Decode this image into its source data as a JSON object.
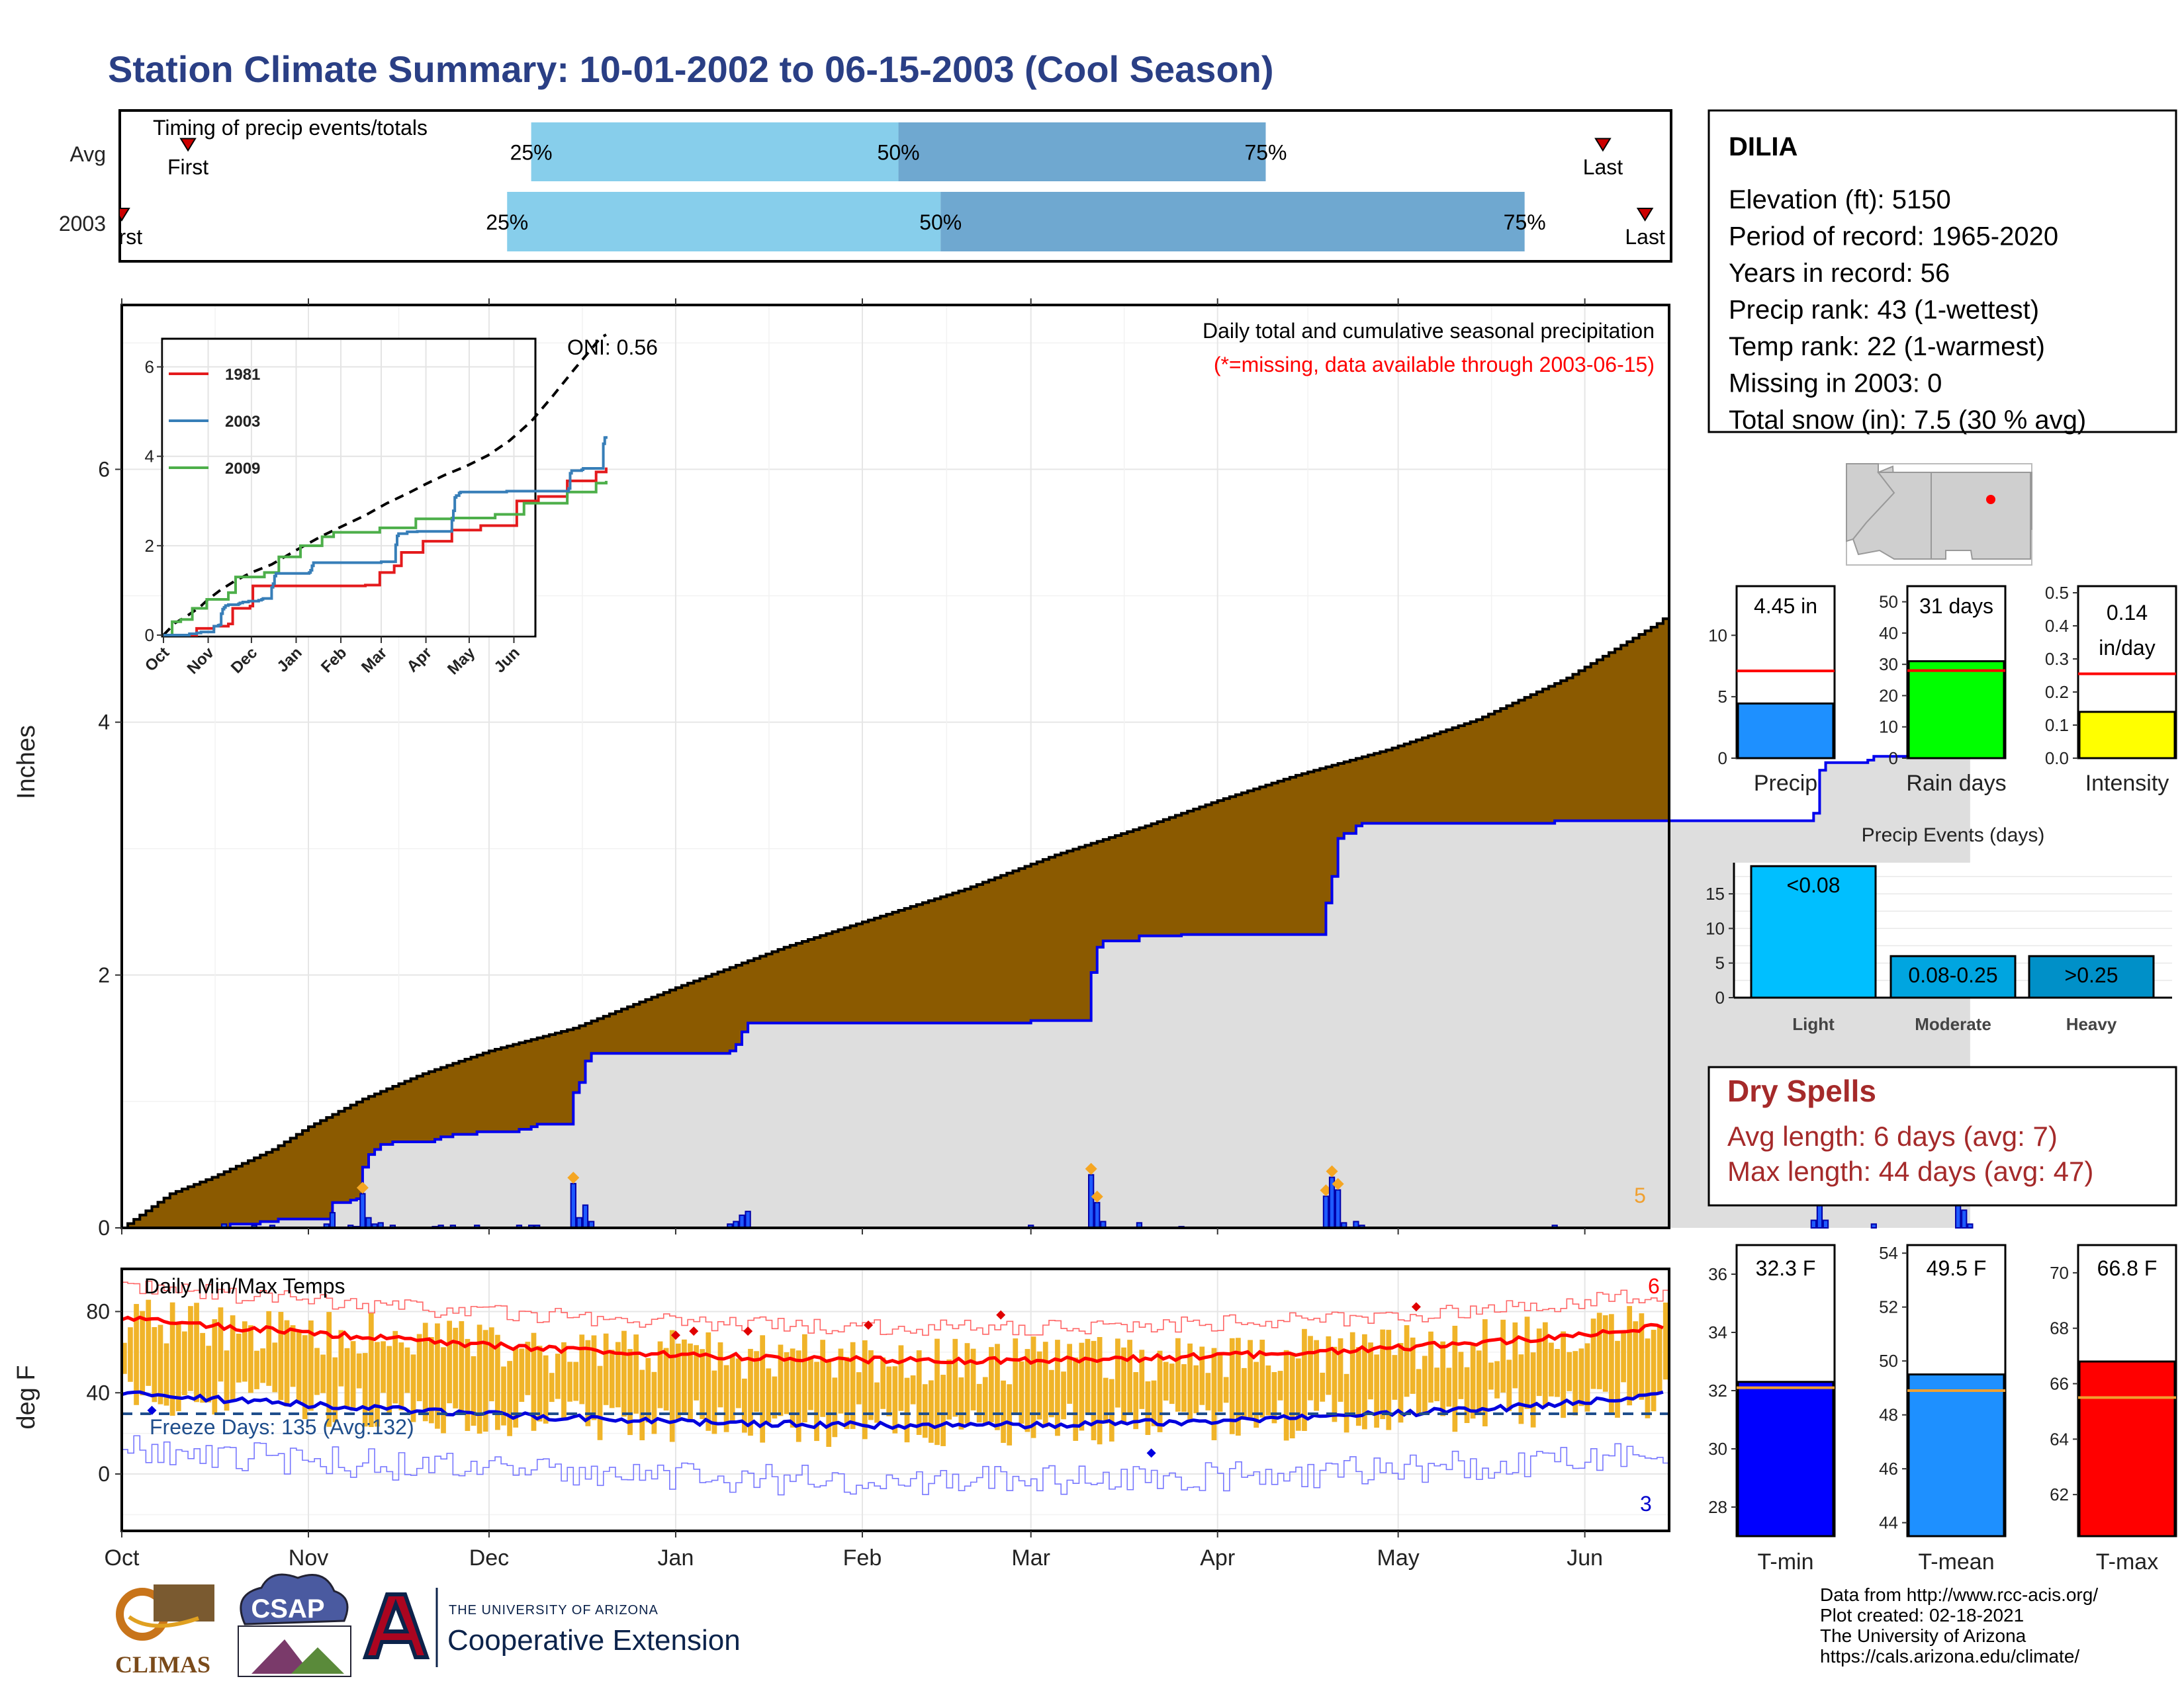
{
  "title": "Station Climate Summary: 10-01-2002 to 06-15-2003 (Cool Season)",
  "timing": {
    "label": "Timing of precip events/totals",
    "rows": [
      {
        "name": "Avg",
        "p25_label": "25%",
        "p50_label": "50%",
        "p75_label": "75%",
        "first_label": "First",
        "last_label": "Last",
        "first": "2002-10-12",
        "p25": "2002-12-08",
        "p50": "2003-02-07",
        "p75": "2003-04-09",
        "last": "2003-06-04"
      },
      {
        "name": "2003",
        "p25_label": "25%",
        "p50_label": "50%",
        "p75_label": "75%",
        "first_label": "First",
        "last_label": "Last",
        "first": "2002-10-01",
        "p25": "2002-12-04",
        "p50": "2003-02-14",
        "p75": "2003-05-22",
        "last": "2003-06-11"
      }
    ],
    "colors": {
      "early": "#87ceeb",
      "late": "#6fa8d0"
    }
  },
  "precip_panel": {
    "title_line1": "Daily total and cumulative seasonal precipitation",
    "title_line2": "(*=missing, data available through 2003-06-15)",
    "ylabel": "Inches",
    "oni_label": "ONI: 0.56",
    "end_label": "5",
    "y_ticks": [
      "0",
      "2",
      "4",
      "6"
    ]
  },
  "temp_panel": {
    "title": "Daily Min/Max Temps",
    "ylabel": "deg F",
    "freeze_label": "Freeze Days: 135 (Avg:132)",
    "max_count_label": "6",
    "min_count_label": "3",
    "y_ticks": [
      "0",
      "40",
      "80"
    ]
  },
  "months": [
    "Oct",
    "Nov",
    "Dec",
    "Jan",
    "Feb",
    "Mar",
    "Apr",
    "May",
    "Jun"
  ],
  "inset": {
    "months": [
      "Oct",
      "Nov",
      "Dec",
      "Jan",
      "Feb",
      "Mar",
      "Apr",
      "May",
      "Jun"
    ],
    "y_ticks": [
      "0",
      "2",
      "4",
      "6"
    ],
    "legend": [
      {
        "name": "1981",
        "color": "#e41a1c"
      },
      {
        "name": "2003",
        "color": "#377eb8"
      },
      {
        "name": "2009",
        "color": "#4daf4a"
      }
    ]
  },
  "station": {
    "name": "DILIA",
    "lines": [
      "Elevation (ft): 5150",
      "Period of record: 1965-2020",
      "Years in record: 56",
      "Precip rank: 43 (1-wettest)",
      "Temp rank: 22 (1-warmest)",
      "Missing in 2003: 0",
      "Total snow (in): 7.5 (30 % avg)"
    ]
  },
  "mini_bars": [
    {
      "label": "Precip",
      "value_label": "4.45 in",
      "value": 4.45,
      "avg": 7.1,
      "ymax": 14,
      "ticks": [
        "0",
        "5",
        "10"
      ],
      "tick_vals": [
        0,
        5,
        10
      ],
      "color": "#1e90ff"
    },
    {
      "label": "Rain days",
      "value_label": "31 days",
      "value": 31,
      "avg": 28,
      "ymax": 55,
      "ticks": [
        "0",
        "10",
        "20",
        "30",
        "40",
        "50"
      ],
      "tick_vals": [
        0,
        10,
        20,
        30,
        40,
        50
      ],
      "color": "#00ff00"
    },
    {
      "label": "Intensity",
      "value_label": "0.14 in/day",
      "value_line1": "0.14",
      "value_line2": "in/day",
      "value": 0.14,
      "avg": 0.255,
      "ymax": 0.52,
      "ticks": [
        "0.0",
        "0.1",
        "0.2",
        "0.3",
        "0.4",
        "0.5"
      ],
      "tick_vals": [
        0,
        0.1,
        0.2,
        0.3,
        0.4,
        0.5
      ],
      "color": "#ffff00"
    }
  ],
  "precip_events": {
    "title": "Precip Events (days)",
    "categories": [
      "Light",
      "Moderate",
      "Heavy"
    ],
    "bar_labels": [
      "<0.08",
      "0.08-0.25",
      ">0.25"
    ],
    "values": [
      19,
      6,
      6
    ],
    "colors": [
      "#00bfff",
      "#00a5e0",
      "#0090c8"
    ],
    "ticks": [
      "0",
      "5",
      "10",
      "15"
    ],
    "tick_vals": [
      0,
      5,
      10,
      15
    ]
  },
  "dry_spells": {
    "title": "Dry Spells",
    "avg_line": "Avg length: 6 days (avg: 7)",
    "max_line": "Max length: 44 days (avg: 47)"
  },
  "temp_bars": [
    {
      "label": "T-min",
      "value_label": "32.3 F",
      "value": 32.3,
      "avg": 32.1,
      "ymin": 27,
      "ymax": 37,
      "ticks": [
        "28",
        "30",
        "32",
        "34",
        "36"
      ],
      "tick_vals": [
        28,
        30,
        32,
        34,
        36
      ],
      "color": "#0000ff"
    },
    {
      "label": "T-mean",
      "value_label": "49.5 F",
      "value": 49.5,
      "avg": 48.9,
      "ymin": 43.5,
      "ymax": 54.3,
      "ticks": [
        "44",
        "46",
        "48",
        "50",
        "52",
        "54"
      ],
      "tick_vals": [
        44,
        46,
        48,
        50,
        52,
        54
      ],
      "color": "#1e90ff"
    },
    {
      "label": "T-max",
      "value_label": "66.8 F",
      "value": 66.8,
      "avg": 65.5,
      "ymin": 60.5,
      "ymax": 71,
      "ticks": [
        "62",
        "64",
        "66",
        "68",
        "70"
      ],
      "tick_vals": [
        62,
        64,
        66,
        68,
        70
      ],
      "color": "#ff0000"
    }
  ],
  "logos": {
    "climas": "CLIMAS",
    "csap": "CSAP",
    "univ_small": "THE UNIVERSITY OF ARIZONA",
    "coop": "Cooperative Extension"
  },
  "footer": [
    "Data from http://www.rcc-acis.org/",
    "Plot created: 02-18-2021",
    "The University of Arizona",
    "https://cals.arizona.edu/climate/"
  ],
  "chart_data": {
    "type": "area",
    "x_start": "2002-10-01",
    "x_end": "2003-06-15",
    "avg_cumulative": [
      [
        0,
        0
      ],
      [
        8,
        0.27
      ],
      [
        15,
        0.4
      ],
      [
        25,
        0.62
      ],
      [
        31,
        0.8
      ],
      [
        40,
        1.02
      ],
      [
        50,
        1.22
      ],
      [
        61,
        1.4
      ],
      [
        75,
        1.58
      ],
      [
        92,
        1.9
      ],
      [
        110,
        2.22
      ],
      [
        123,
        2.42
      ],
      [
        140,
        2.68
      ],
      [
        155,
        2.95
      ],
      [
        170,
        3.18
      ],
      [
        182,
        3.38
      ],
      [
        195,
        3.58
      ],
      [
        210,
        3.78
      ],
      [
        225,
        4.02
      ],
      [
        240,
        4.35
      ],
      [
        255,
        4.78
      ],
      [
        270,
        5.35
      ],
      [
        285,
        5.95
      ],
      [
        298,
        6.45
      ],
      [
        303,
        6.65
      ],
      [
        307,
        6.72
      ]
    ],
    "cumulative_2003": [
      [
        0,
        0
      ],
      [
        17,
        0
      ],
      [
        18,
        0.03
      ],
      [
        22,
        0.03
      ],
      [
        23,
        0.05
      ],
      [
        25,
        0.05
      ],
      [
        26,
        0.07
      ],
      [
        34,
        0.07
      ],
      [
        35,
        0.2
      ],
      [
        38,
        0.22
      ],
      [
        39,
        0.23
      ],
      [
        40,
        0.48
      ],
      [
        41,
        0.58
      ],
      [
        42,
        0.62
      ],
      [
        43,
        0.66
      ],
      [
        45,
        0.68
      ],
      [
        52,
        0.7
      ],
      [
        53,
        0.72
      ],
      [
        54,
        0.72
      ],
      [
        55,
        0.74
      ],
      [
        58,
        0.74
      ],
      [
        59,
        0.76
      ],
      [
        65,
        0.76
      ],
      [
        66,
        0.78
      ],
      [
        68,
        0.8
      ],
      [
        69,
        0.82
      ],
      [
        74,
        0.82
      ],
      [
        75,
        1.07
      ],
      [
        76,
        1.15
      ],
      [
        77,
        1.32
      ],
      [
        78,
        1.38
      ],
      [
        94,
        1.38
      ],
      [
        100,
        1.38
      ],
      [
        101,
        1.4
      ],
      [
        102,
        1.45
      ],
      [
        103,
        1.55
      ],
      [
        104,
        1.62
      ],
      [
        140,
        1.62
      ],
      [
        150,
        1.62
      ],
      [
        151,
        1.64
      ],
      [
        155,
        1.64
      ],
      [
        160,
        1.64
      ],
      [
        161,
        2.02
      ],
      [
        162,
        2.22
      ],
      [
        163,
        2.27
      ],
      [
        168,
        2.27
      ],
      [
        169,
        2.31
      ],
      [
        175,
        2.31
      ],
      [
        176,
        2.32
      ],
      [
        190,
        2.32
      ],
      [
        199,
        2.32
      ],
      [
        200,
        2.57
      ],
      [
        201,
        2.78
      ],
      [
        202,
        3.08
      ],
      [
        203,
        3.12
      ],
      [
        205,
        3.18
      ],
      [
        206,
        3.2
      ],
      [
        230,
        3.2
      ],
      [
        237,
        3.2
      ],
      [
        238,
        3.22
      ],
      [
        280,
        3.22
      ],
      [
        281,
        3.28
      ],
      [
        282,
        3.62
      ],
      [
        283,
        3.68
      ],
      [
        290,
        3.7
      ],
      [
        291,
        3.73
      ],
      [
        304,
        3.73
      ],
      [
        305,
        4.28
      ],
      [
        306,
        4.42
      ],
      [
        307,
        4.45
      ]
    ],
    "daily_2003": [
      [
        17,
        0.03
      ],
      [
        22,
        0.02
      ],
      [
        25,
        0.02
      ],
      [
        34,
        0.03
      ],
      [
        35,
        0.12
      ],
      [
        38,
        0.02
      ],
      [
        39,
        0.01
      ],
      [
        40,
        0.27
      ],
      [
        41,
        0.08
      ],
      [
        42,
        0.03
      ],
      [
        43,
        0.04
      ],
      [
        45,
        0.02
      ],
      [
        52,
        0.01
      ],
      [
        53,
        0.02
      ],
      [
        55,
        0.02
      ],
      [
        59,
        0.02
      ],
      [
        66,
        0.02
      ],
      [
        68,
        0.02
      ],
      [
        69,
        0.02
      ],
      [
        75,
        0.35
      ],
      [
        76,
        0.08
      ],
      [
        77,
        0.18
      ],
      [
        78,
        0.05
      ],
      [
        101,
        0.03
      ],
      [
        102,
        0.05
      ],
      [
        103,
        0.1
      ],
      [
        104,
        0.13
      ],
      [
        151,
        0.02
      ],
      [
        161,
        0.42
      ],
      [
        162,
        0.2
      ],
      [
        163,
        0.05
      ],
      [
        169,
        0.04
      ],
      [
        176,
        0.01
      ],
      [
        200,
        0.25
      ],
      [
        201,
        0.4
      ],
      [
        202,
        0.3
      ],
      [
        203,
        0.04
      ],
      [
        205,
        0.05
      ],
      [
        206,
        0.02
      ],
      [
        238,
        0.02
      ],
      [
        281,
        0.06
      ],
      [
        282,
        0.34
      ],
      [
        283,
        0.06
      ],
      [
        291,
        0.03
      ],
      [
        305,
        0.55
      ],
      [
        306,
        0.14
      ],
      [
        307,
        0.03
      ]
    ],
    "oni": 0.56,
    "ylim": [
      0,
      7.3
    ]
  }
}
